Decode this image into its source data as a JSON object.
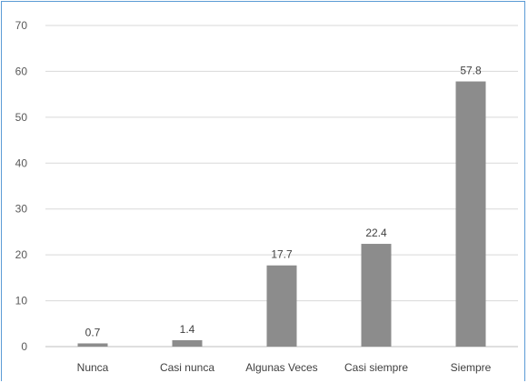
{
  "chart_data": {
    "type": "bar",
    "categories": [
      "Nunca",
      "Casi nunca",
      "Algunas Veces",
      "Casi siempre",
      "Siempre"
    ],
    "values": [
      0.7,
      1.4,
      17.7,
      22.4,
      57.8
    ],
    "data_labels": [
      "0.7",
      "1.4",
      "17.7",
      "22.4",
      "57.8"
    ],
    "title": "",
    "xlabel": "",
    "ylabel": "",
    "ylim": [
      0,
      70
    ],
    "yticks": [
      0,
      10,
      20,
      30,
      40,
      50,
      60,
      70
    ],
    "ytick_labels": [
      "0",
      "10",
      "20",
      "30",
      "40",
      "50",
      "60",
      "70"
    ],
    "grid": true,
    "legend": "none",
    "colors": {
      "bar": "#8c8c8c",
      "grid": "#d9d9d9",
      "axis": "#bfbfbf",
      "frame": "#5b9bd5"
    }
  }
}
